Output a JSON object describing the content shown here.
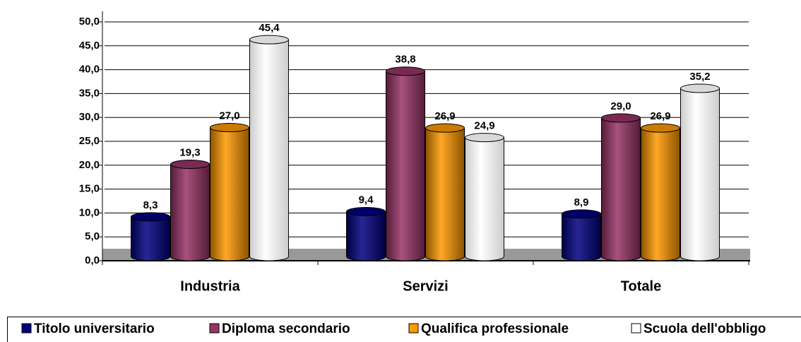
{
  "chart_data": {
    "type": "bar",
    "categories": [
      "Industria",
      "Servizi",
      "Totale"
    ],
    "series": [
      {
        "name": "Titolo universitario",
        "color": "#000080",
        "values": [
          8.3,
          9.4,
          8.9
        ],
        "value_labels": [
          "8,3",
          "9,4",
          "8,9"
        ]
      },
      {
        "name": "Diploma secondario",
        "color": "#993366",
        "values": [
          19.3,
          38.8,
          29.0
        ],
        "value_labels": [
          "19,3",
          "38,8",
          "29,0"
        ]
      },
      {
        "name": "Qualifica professionale",
        "color": "#ff9900",
        "values": [
          27.0,
          26.9,
          26.9
        ],
        "value_labels": [
          "27,0",
          "26,9",
          "26,9"
        ]
      },
      {
        "name": "Scuola dell'obbligo",
        "color": "#ffffff",
        "values": [
          45.4,
          24.9,
          35.2
        ],
        "value_labels": [
          "45,4",
          "24,9",
          "35,2"
        ]
      }
    ],
    "ylim": [
      0,
      50
    ],
    "yticks": [
      {
        "value": 0,
        "label": "0,0"
      },
      {
        "value": 5,
        "label": "5,0"
      },
      {
        "value": 10,
        "label": "10,0"
      },
      {
        "value": 15,
        "label": "15,0"
      },
      {
        "value": 20,
        "label": "20,0"
      },
      {
        "value": 25,
        "label": "25,0"
      },
      {
        "value": 30,
        "label": "30,0"
      },
      {
        "value": 35,
        "label": "35,0"
      },
      {
        "value": 40,
        "label": "40,0"
      },
      {
        "value": 45,
        "label": "45,0"
      },
      {
        "value": 50,
        "label": "50,0"
      }
    ],
    "grid": true,
    "legend": "bottom"
  }
}
